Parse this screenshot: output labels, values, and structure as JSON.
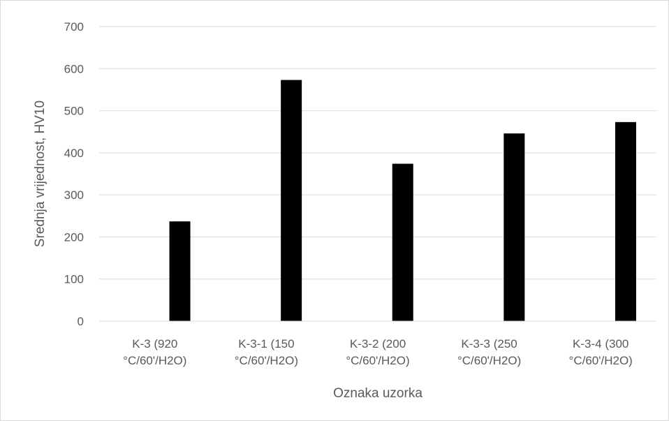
{
  "chart_data": {
    "type": "bar",
    "title": "",
    "xlabel": "Oznaka uzorka",
    "ylabel": "Srednja vrijednost, HV10",
    "ylim": [
      0,
      700
    ],
    "yticks": [
      0,
      100,
      200,
      300,
      400,
      500,
      600,
      700
    ],
    "grid": true,
    "legend": "none",
    "bar_color": "#000000",
    "grid_color": "#d9d9d9",
    "categories": [
      [
        "K-3 (920",
        "°C/60'/H2O)"
      ],
      [
        "K-3-1 (150",
        "°C/60'/H2O)"
      ],
      [
        "K-3-2 (200",
        "°C/60'/H2O)"
      ],
      [
        "K-3-3 (250",
        "°C/60'/H2O)"
      ],
      [
        "K-3-4 (300",
        "°C/60'/H2O)"
      ]
    ],
    "values": [
      237,
      573,
      374,
      446,
      473
    ]
  }
}
